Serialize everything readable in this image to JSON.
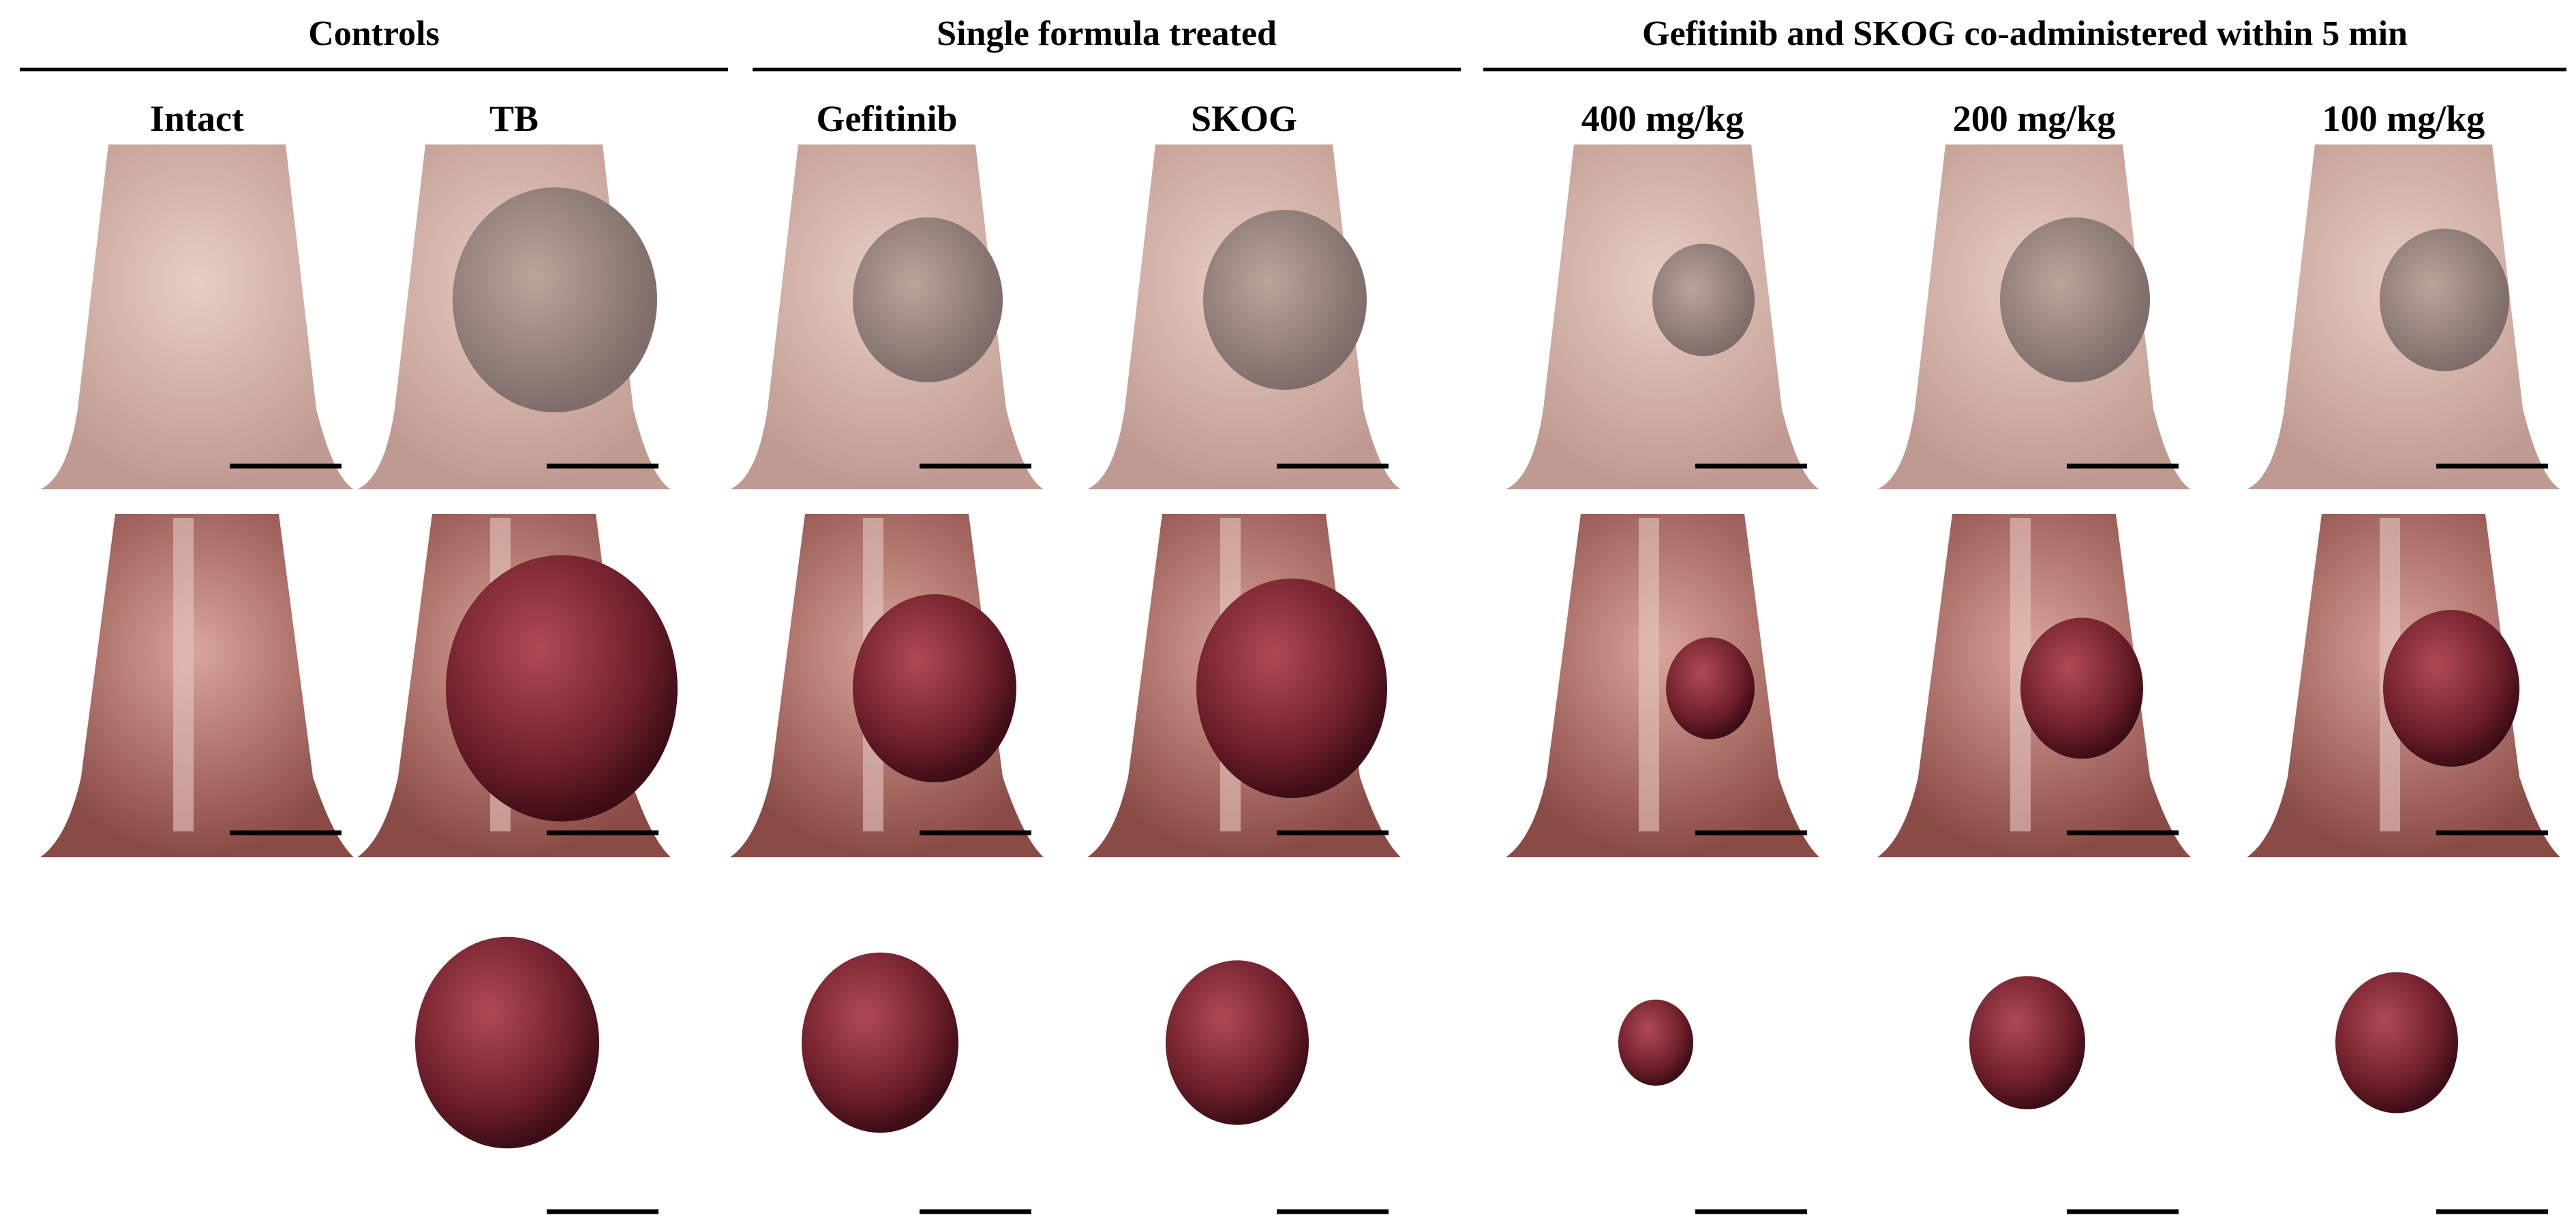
{
  "groups": [
    {
      "title": "Controls",
      "columns": [
        "Intact",
        "TB"
      ]
    },
    {
      "title": "Single formula treated",
      "columns": [
        "Gefitinib",
        "SKOG"
      ]
    },
    {
      "title": "Gefitinib and SKOG co-administered within 5 min",
      "columns": [
        "400 mg/kg",
        "200 mg/kg",
        "100 mg/kg"
      ]
    }
  ]
}
